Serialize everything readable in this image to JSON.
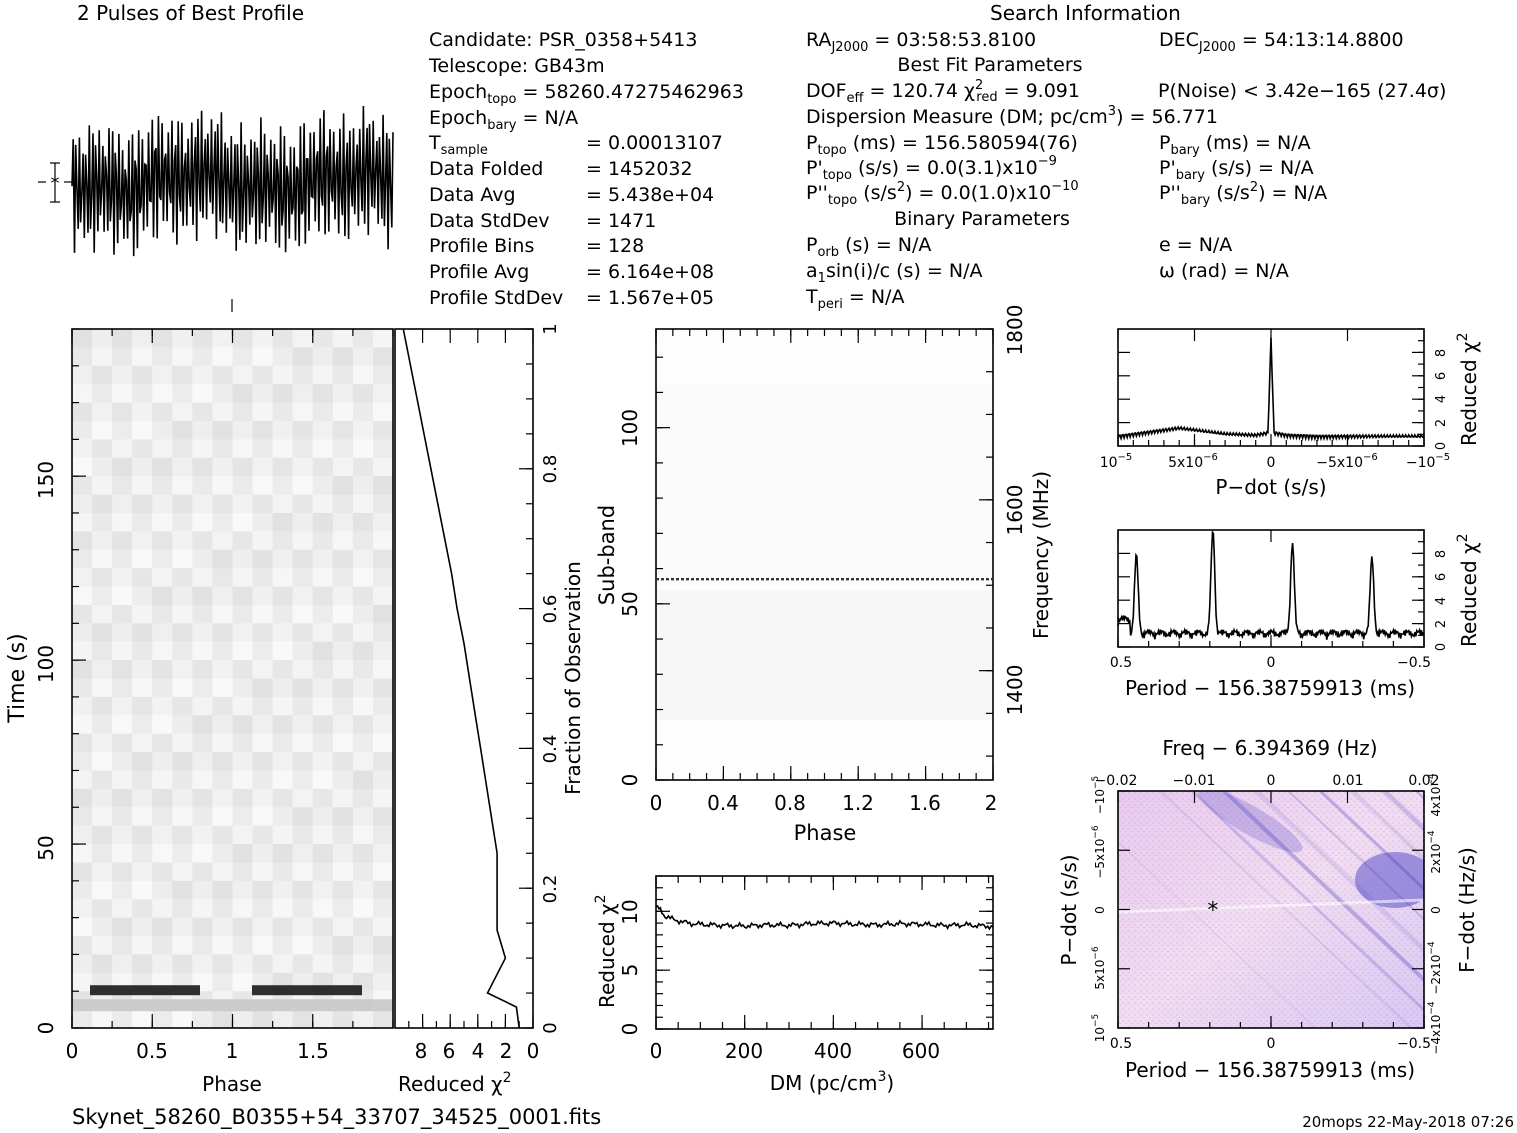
{
  "header": {
    "profile_title": "2 Pulses of Best Profile",
    "search_title": "Search Information",
    "best_fit_title": "Best Fit Parameters",
    "binary_title": "Binary Parameters",
    "filename": "Skynet_58260_B0355+54_33707_34525_0001.fits",
    "footer_stamp": "20mops 22-May-2018 07:26"
  },
  "info": {
    "candidate": "Candidate:  PSR_0358+5413",
    "telescope": "Telescope:  GB43m",
    "epoch_topo_label": "Epoch",
    "epoch_topo_sub": "topo",
    "epoch_topo_value": " = 58260.47275462963",
    "epoch_bary_label": "Epoch",
    "epoch_bary_sub": "bary",
    "epoch_bary_value": " = N/A",
    "tsample_label": "T",
    "tsample_sub": "sample",
    "tsample_value": "=   0.00013107",
    "rows": [
      {
        "label": "Data Folded",
        "value": "=   1452032"
      },
      {
        "label": "Data Avg",
        "value": "=   5.438e+04"
      },
      {
        "label": "Data StdDev",
        "value": "=   1471"
      },
      {
        "label": "Profile Bins",
        "value": "=   128"
      },
      {
        "label": "Profile Avg",
        "value": "=   6.164e+08"
      },
      {
        "label": "Profile StdDev",
        "value": "=   1.567e+05"
      }
    ]
  },
  "search": {
    "ra_label": "RA",
    "ra_sub": "J2000",
    "ra_value": " = 03:58:53.8100",
    "dec_label": "DEC",
    "dec_sub": "J2000",
    "dec_value": " = 54:13:14.8800",
    "dof_label": "DOF",
    "dof_sub": "eff",
    "dof_value": " = 120.74  ",
    "chi_sym": "χ",
    "chi_sup": "2",
    "chi_sub": "red",
    "chi_value": " = 9.091",
    "pnoise": "P(Noise) < 3.42e−165  (27.4σ)",
    "dm_text": "Dispersion Measure (DM; pc/cm",
    "dm_sup": "3",
    "dm_value": ") = 56.771",
    "ptopo_label": "P",
    "ptopo_sub": "topo",
    "ptopo_value": " (ms) =  156.580594(76)",
    "pbary_label": "P",
    "pbary_sub": "bary",
    "pbary_value": " (ms) = N/A",
    "pdtopo_label": "P'",
    "pdtopo_sub": "topo",
    "pdtopo_value": " (s/s) = 0.0(3.1)x10",
    "pdtopo_exp": "−9",
    "pdbary_label": "P'",
    "pdbary_sub": "bary",
    "pdbary_value": " (s/s) = N/A",
    "pddtopo_label": "P''",
    "pddtopo_sub": "topo",
    "pddtopo_value": " (s/s",
    "pddtopo_sup": "2",
    "pddtopo_value2": ") = 0.0(1.0)x10",
    "pddtopo_exp": "−10",
    "pddbary_label": "P''",
    "pddbary_sub": "bary",
    "pddbary_value": " (s/s",
    "pddbary_sup": "2",
    "pddbary_value2": ") = N/A",
    "porb_label": "P",
    "porb_sub": "orb",
    "porb_value": " (s) = N/A",
    "ecc": "e = N/A",
    "asini_label": "a",
    "asini_sub": "1",
    "asini_value": "sin(i)/c (s) = N/A",
    "omega": "ω (rad) = N/A",
    "tperi_label": "T",
    "tperi_sub": "peri",
    "tperi_value": " = N/A"
  },
  "chart_data": [
    {
      "type": "line",
      "name": "profile",
      "title": "2 Pulses of Best Profile",
      "x": [
        0,
        0.1,
        0.2,
        0.3,
        0.4,
        0.5,
        0.6,
        0.7,
        0.8,
        0.9,
        1.0,
        1.1,
        1.2,
        1.3,
        1.4,
        1.5,
        1.6,
        1.7,
        1.8,
        1.9,
        2.0
      ],
      "y": [
        0.55,
        0.5,
        0.45,
        0.55,
        0.4,
        0.5,
        0.6,
        0.45,
        0.55,
        0.5,
        0.55,
        0.5,
        0.45,
        0.55,
        0.4,
        0.5,
        0.6,
        0.45,
        0.55,
        0.5,
        0.55
      ]
    },
    {
      "type": "heatmap",
      "name": "time-phase",
      "xlabel": "Phase",
      "ylabel": "Time (s)",
      "xlim": [
        0,
        2
      ],
      "ylim": [
        0,
        190
      ],
      "xticks": [
        "0",
        "0.5",
        "1",
        "1.5"
      ],
      "yticks": [
        "0",
        "50",
        "100",
        "150"
      ],
      "right_axis_label": "Fraction of Observation",
      "right_ticks": [
        "0",
        "0.2",
        "0.4",
        "0.6",
        "0.8",
        "1"
      ]
    },
    {
      "type": "line",
      "name": "reduced-chi2-vs-time",
      "xlabel": "Reduced χ",
      "xlabel_sup": "2",
      "xticks": [
        "8",
        "6",
        "4",
        "2",
        "0"
      ],
      "x_reversed": true,
      "xlim": [
        0,
        10
      ],
      "ylim": [
        0,
        1
      ],
      "x": [
        9.4,
        8.9,
        8.4,
        7.9,
        7.4,
        6.9,
        6.4,
        5.9,
        5.5,
        5.0,
        4.6,
        4.2,
        3.8,
        3.4,
        3.0,
        2.6,
        2.6,
        2.0,
        3.3,
        1.2,
        1.0
      ],
      "y": [
        1.0,
        0.95,
        0.9,
        0.85,
        0.8,
        0.75,
        0.7,
        0.65,
        0.6,
        0.55,
        0.5,
        0.45,
        0.4,
        0.35,
        0.3,
        0.25,
        0.14,
        0.1,
        0.05,
        0.03,
        0.0
      ]
    },
    {
      "type": "heatmap",
      "name": "subband-phase",
      "xlabel": "Phase",
      "ylabel": "Sub-band",
      "xlim": [
        0,
        2
      ],
      "ylim": [
        0,
        128
      ],
      "xticks": [
        "0",
        "0.4",
        "0.8",
        "1.2",
        "1.6",
        "2"
      ],
      "yticks": [
        "0",
        "50",
        "100"
      ],
      "right_axis_label": "Frequency (MHz)",
      "right_ticks": [
        "1400",
        "1600",
        "1800"
      ],
      "marker_subband": 57
    },
    {
      "type": "line",
      "name": "dm-curve",
      "xlabel": "DM (pc/cm",
      "xlabel_sup": "3",
      "xlabel_end": ")",
      "ylabel": "Reduced χ",
      "ylabel_sup": "2",
      "xlim": [
        0,
        760
      ],
      "ylim": [
        0,
        13
      ],
      "xticks": [
        "0",
        "200",
        "400",
        "600"
      ],
      "yticks": [
        "0",
        "5",
        "10"
      ],
      "x": [
        0,
        10,
        20,
        40,
        60,
        80,
        100,
        150,
        200,
        250,
        300,
        350,
        400,
        450,
        500,
        550,
        600,
        650,
        700,
        760
      ],
      "y": [
        10.4,
        10.1,
        9.6,
        9.3,
        9.1,
        8.95,
        8.9,
        8.8,
        8.75,
        8.85,
        8.8,
        8.95,
        9.0,
        8.9,
        8.85,
        8.95,
        8.9,
        8.8,
        8.85,
        8.7
      ]
    },
    {
      "type": "line",
      "name": "pdot-curve",
      "xlabel": "P−dot (s/s)",
      "ylabel": "Reduced χ",
      "ylabel_sup": "2",
      "xticks": [
        "10",
        "5x10",
        "0",
        "−5x10",
        "−10"
      ],
      "xtick_exps": [
        "−5",
        "−6",
        "",
        "−6",
        "−5"
      ],
      "yticks": [
        "0",
        "2",
        "4",
        "6",
        "8"
      ],
      "xlim": [
        1e-05,
        -1e-05
      ],
      "ylim": [
        0,
        10
      ],
      "x": [
        1e-05,
        6e-06,
        3e-06,
        1e-06,
        2e-07,
        0,
        -2e-07,
        -1e-06,
        -3e-06,
        -6e-06,
        -1e-05
      ],
      "y": [
        0.6,
        1.3,
        0.8,
        0.7,
        0.9,
        9.0,
        0.9,
        0.7,
        0.6,
        0.6,
        0.6
      ]
    },
    {
      "type": "line",
      "name": "period-curve",
      "xlabel": "Period − 156.38759913 (ms)",
      "ylabel": "Reduced χ",
      "ylabel_sup": "2",
      "xticks": [
        "0.5",
        "0",
        "−0.5"
      ],
      "yticks": [
        "0",
        "2",
        "4",
        "6",
        "8"
      ],
      "xlim": [
        0.5,
        -0.5
      ],
      "ylim": [
        0,
        10
      ],
      "peaks_x": [
        0.44,
        0.19,
        -0.07,
        -0.33
      ],
      "peaks_y": [
        6.6,
        9.0,
        7.7,
        6.4
      ]
    },
    {
      "type": "heatmap",
      "name": "period-pdot-plane",
      "title": "Freq − 6.394369 (Hz)",
      "xlabel": "Period − 156.38759913 (ms)",
      "ylabel": "P−dot (s/s)",
      "right_axis_label": "F−dot (Hz/s)",
      "xticks": [
        "0.5",
        "0",
        "−0.5"
      ],
      "top_ticks": [
        "−0.02",
        "−0.01",
        "0",
        "0.01",
        "0.02"
      ],
      "yticks": [
        "10",
        "5x10",
        "0",
        "−5x10",
        "−10"
      ],
      "ytick_exps": [
        "−5",
        "−6",
        "",
        "−6",
        "−5"
      ],
      "right_ticks": [
        "−4x10",
        "−2x10",
        "0",
        "2x10",
        "4x10"
      ],
      "right_tick_exps": [
        "−4",
        "−4",
        "",
        "−4",
        "−4"
      ],
      "best_x": 0.19,
      "best_y": 0
    }
  ]
}
